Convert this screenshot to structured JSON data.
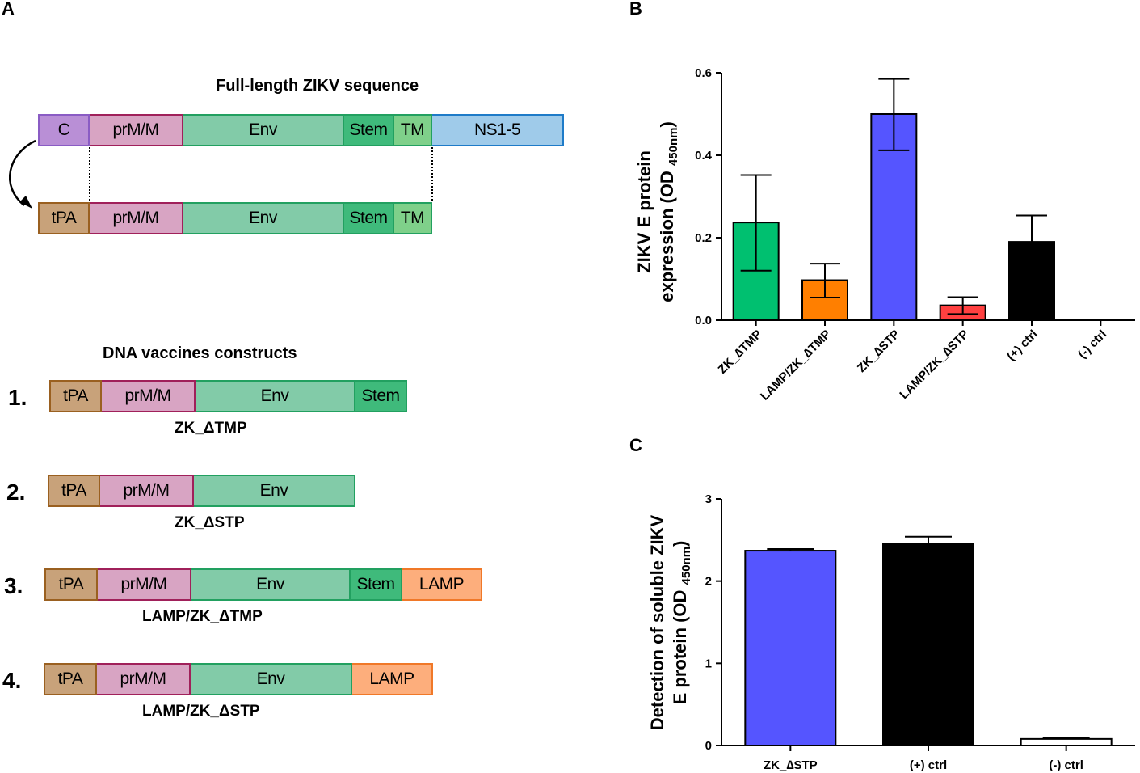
{
  "panels": {
    "a": "A",
    "b": "B",
    "c": "C"
  },
  "panel_a": {
    "full_length_title": "Full-length ZIKV sequence",
    "constructs_title": "DNA vaccines constructs",
    "full_length": [
      "C",
      "prM/M",
      "Env",
      "Stem",
      "TM",
      "NS1-5"
    ],
    "full_length_tpa": [
      "tPA",
      "prM/M",
      "Env",
      "Stem",
      "TM"
    ],
    "constructs": [
      {
        "number": "1.",
        "name": "ZK_ΔTMP",
        "segments": [
          "tPA",
          "prM/M",
          "Env",
          "Stem"
        ]
      },
      {
        "number": "2.",
        "name": "ZK_ΔSTP",
        "segments": [
          "tPA",
          "prM/M",
          "Env"
        ]
      },
      {
        "number": "3.",
        "name": "LAMP/ZK_ΔTMP",
        "segments": [
          "tPA",
          "prM/M",
          "Env",
          "Stem",
          "LAMP"
        ]
      },
      {
        "number": "4.",
        "name": "LAMP/ZK_ΔSTP",
        "segments": [
          "tPA",
          "prM/M",
          "Env",
          "LAMP"
        ]
      }
    ],
    "colors": {
      "C": {
        "fill": "#b98fd6",
        "stroke": "#8a5cc4"
      },
      "prM/M": {
        "fill": "#d8a4c3",
        "stroke": "#a0205a"
      },
      "Env": {
        "fill": "#82cba8",
        "stroke": "#22a060"
      },
      "Stem": {
        "fill": "#3fba7b",
        "stroke": "#22a060"
      },
      "TM": {
        "fill": "#7fd08a",
        "stroke": "#22a060"
      },
      "NS1-5": {
        "fill": "#9fcbea",
        "stroke": "#1e7bc8"
      },
      "tPA": {
        "fill": "#c8a27a",
        "stroke": "#9a6020"
      },
      "LAMP": {
        "fill": "#fdae7c",
        "stroke": "#f07828"
      }
    }
  },
  "chart_data": [
    {
      "type": "bar",
      "panel": "B",
      "ylabel_line1": "ZIKV E protein",
      "ylabel_line2_prefix": "expression (OD ",
      "ylabel_sub": "450nm",
      "ylabel_line2_suffix": ")",
      "categories": [
        "ZK_∆TMP",
        "LAMP/ZK_∆TMP",
        "ZK_∆STP",
        "LAMP/ZK_∆STP",
        "(+) ctrl",
        "(-) ctrl"
      ],
      "values": [
        0.237,
        0.097,
        0.5,
        0.036,
        0.19,
        0.0
      ],
      "error_low": [
        0.12,
        0.055,
        0.412,
        0.015,
        0.125,
        0.0
      ],
      "error_high": [
        0.352,
        0.137,
        0.585,
        0.056,
        0.254,
        0.0
      ],
      "colors": [
        "#00c070",
        "#ff7f00",
        "#5555ff",
        "#ff4040",
        "#000000",
        "#ffffff"
      ],
      "ylim": [
        0,
        0.6
      ],
      "yticks": [
        "0.0",
        "0.2",
        "0.4",
        "0.6"
      ],
      "ytick_values": [
        0,
        0.2,
        0.4,
        0.6
      ]
    },
    {
      "type": "bar",
      "panel": "C",
      "ylabel_line1": "Detection of soluble ZIKV",
      "ylabel_line2_prefix": "E protein (OD ",
      "ylabel_sub": "450nm",
      "ylabel_line2_suffix": ")",
      "categories": [
        "ZK_∆STP",
        "(+) ctrl",
        "(-) ctrl"
      ],
      "values": [
        2.37,
        2.45,
        0.08
      ],
      "error_low": [
        2.37,
        2.45,
        0.08
      ],
      "error_high": [
        2.39,
        2.54,
        0.09
      ],
      "colors": [
        "#5555ff",
        "#000000",
        "#ffffff"
      ],
      "ylim": [
        0,
        3
      ],
      "yticks": [
        "0",
        "1",
        "2",
        "3"
      ],
      "ytick_values": [
        0,
        1,
        2,
        3
      ]
    }
  ]
}
